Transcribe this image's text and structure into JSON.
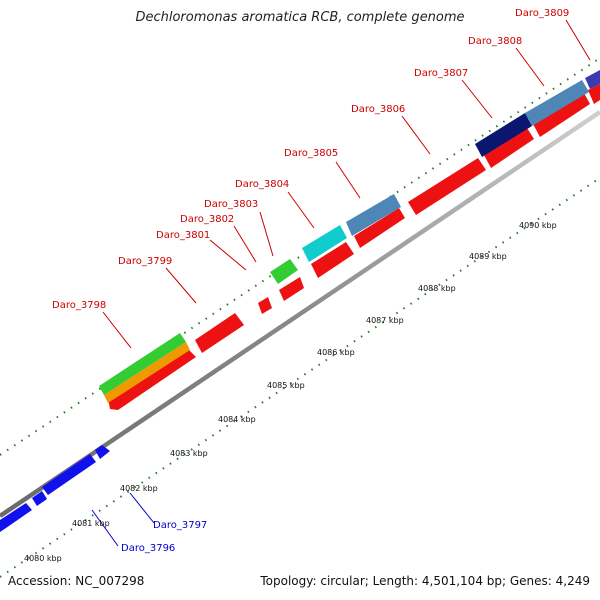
{
  "title": "Dechloromonas aromatica RCB, complete genome",
  "footer": {
    "accession": "Accession: NC_007298",
    "summary": "Topology: circular; Length: 4,501,104 bp; Genes: 4,249"
  },
  "colors": {
    "red_gene": "#ee1111",
    "blue_gene": "#1111ee",
    "green_gene": "#33cc33",
    "orange_gene": "#ee9900",
    "cyan_gene": "#11cccc",
    "steelblue_gene": "#4f86b8",
    "navy_gene": "#0b1670",
    "backbone": "#999999",
    "tick": "#2a7a2a",
    "label_red": "#cc0000",
    "label_blue": "#0000cc"
  },
  "kbp_labels": [
    "4080 kbp",
    "4081 kbp",
    "4082 kbp",
    "4083 kbp",
    "4084 kbp",
    "4085 kbp",
    "4086 kbp",
    "4087 kbp",
    "4088 kbp",
    "4089 kbp",
    "4090 kbp"
  ],
  "gene_labels": {
    "top": [
      "Daro_3798",
      "Daro_3799",
      "Daro_3801",
      "Daro_3802",
      "Daro_3803",
      "Daro_3804",
      "Daro_3805",
      "Daro_3806",
      "Daro_3807",
      "Daro_3808",
      "Daro_3809"
    ],
    "bottom": [
      "Daro_3797",
      "Daro_3796"
    ]
  }
}
